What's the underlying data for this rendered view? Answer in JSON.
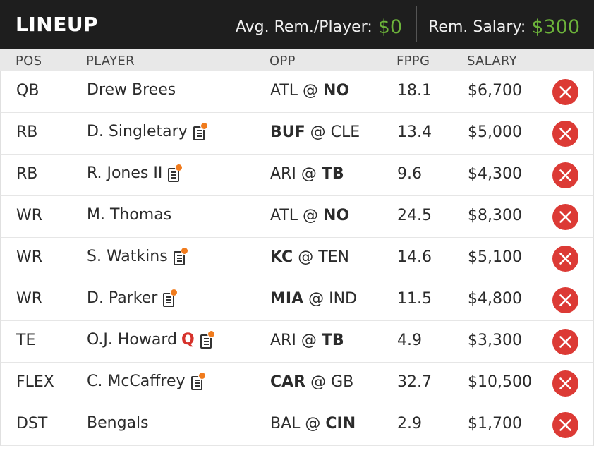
{
  "header": {
    "title": "LINEUP",
    "avg_label": "Avg. Rem./Player:",
    "avg_value": "$0",
    "rem_label": "Rem. Salary:",
    "rem_value": "$300",
    "accent_color": "#6cb33a"
  },
  "columns": {
    "pos": "POS",
    "player": "PLAYER",
    "opp": "OPP",
    "fppg": "FPPG",
    "salary": "SALARY"
  },
  "rows": [
    {
      "pos": "QB",
      "player": "Drew Brees",
      "status": "",
      "has_note": false,
      "away": "ATL",
      "sep": "@",
      "home": "NO",
      "bold": "home",
      "fppg": "18.1",
      "salary": "$6,700"
    },
    {
      "pos": "RB",
      "player": "D. Singletary",
      "status": "",
      "has_note": true,
      "away": "BUF",
      "sep": "@",
      "home": "CLE",
      "bold": "away",
      "fppg": "13.4",
      "salary": "$5,000"
    },
    {
      "pos": "RB",
      "player": "R. Jones II",
      "status": "",
      "has_note": true,
      "away": "ARI",
      "sep": "@",
      "home": "TB",
      "bold": "home",
      "fppg": "9.6",
      "salary": "$4,300"
    },
    {
      "pos": "WR",
      "player": "M. Thomas",
      "status": "",
      "has_note": false,
      "away": "ATL",
      "sep": "@",
      "home": "NO",
      "bold": "home",
      "fppg": "24.5",
      "salary": "$8,300"
    },
    {
      "pos": "WR",
      "player": "S. Watkins",
      "status": "",
      "has_note": true,
      "away": "KC",
      "sep": "@",
      "home": "TEN",
      "bold": "away",
      "fppg": "14.6",
      "salary": "$5,100"
    },
    {
      "pos": "WR",
      "player": "D. Parker",
      "status": "",
      "has_note": true,
      "away": "MIA",
      "sep": "@",
      "home": "IND",
      "bold": "away",
      "fppg": "11.5",
      "salary": "$4,800"
    },
    {
      "pos": "TE",
      "player": "O.J. Howard",
      "status": "Q",
      "has_note": true,
      "away": "ARI",
      "sep": "@",
      "home": "TB",
      "bold": "home",
      "fppg": "4.9",
      "salary": "$3,300"
    },
    {
      "pos": "FLEX",
      "player": "C. McCaffrey",
      "status": "",
      "has_note": true,
      "away": "CAR",
      "sep": "@",
      "home": "GB",
      "bold": "away",
      "fppg": "32.7",
      "salary": "$10,500"
    },
    {
      "pos": "DST",
      "player": "Bengals",
      "status": "",
      "has_note": false,
      "away": "BAL",
      "sep": "@",
      "home": "CIN",
      "bold": "home",
      "fppg": "2.9",
      "salary": "$1,700"
    }
  ],
  "icons": {
    "note": "player-news-icon",
    "remove": "remove-player-icon"
  },
  "colors": {
    "remove": "#dc3a35",
    "news_dot": "#f07b1d",
    "questionable": "#d6322b"
  }
}
